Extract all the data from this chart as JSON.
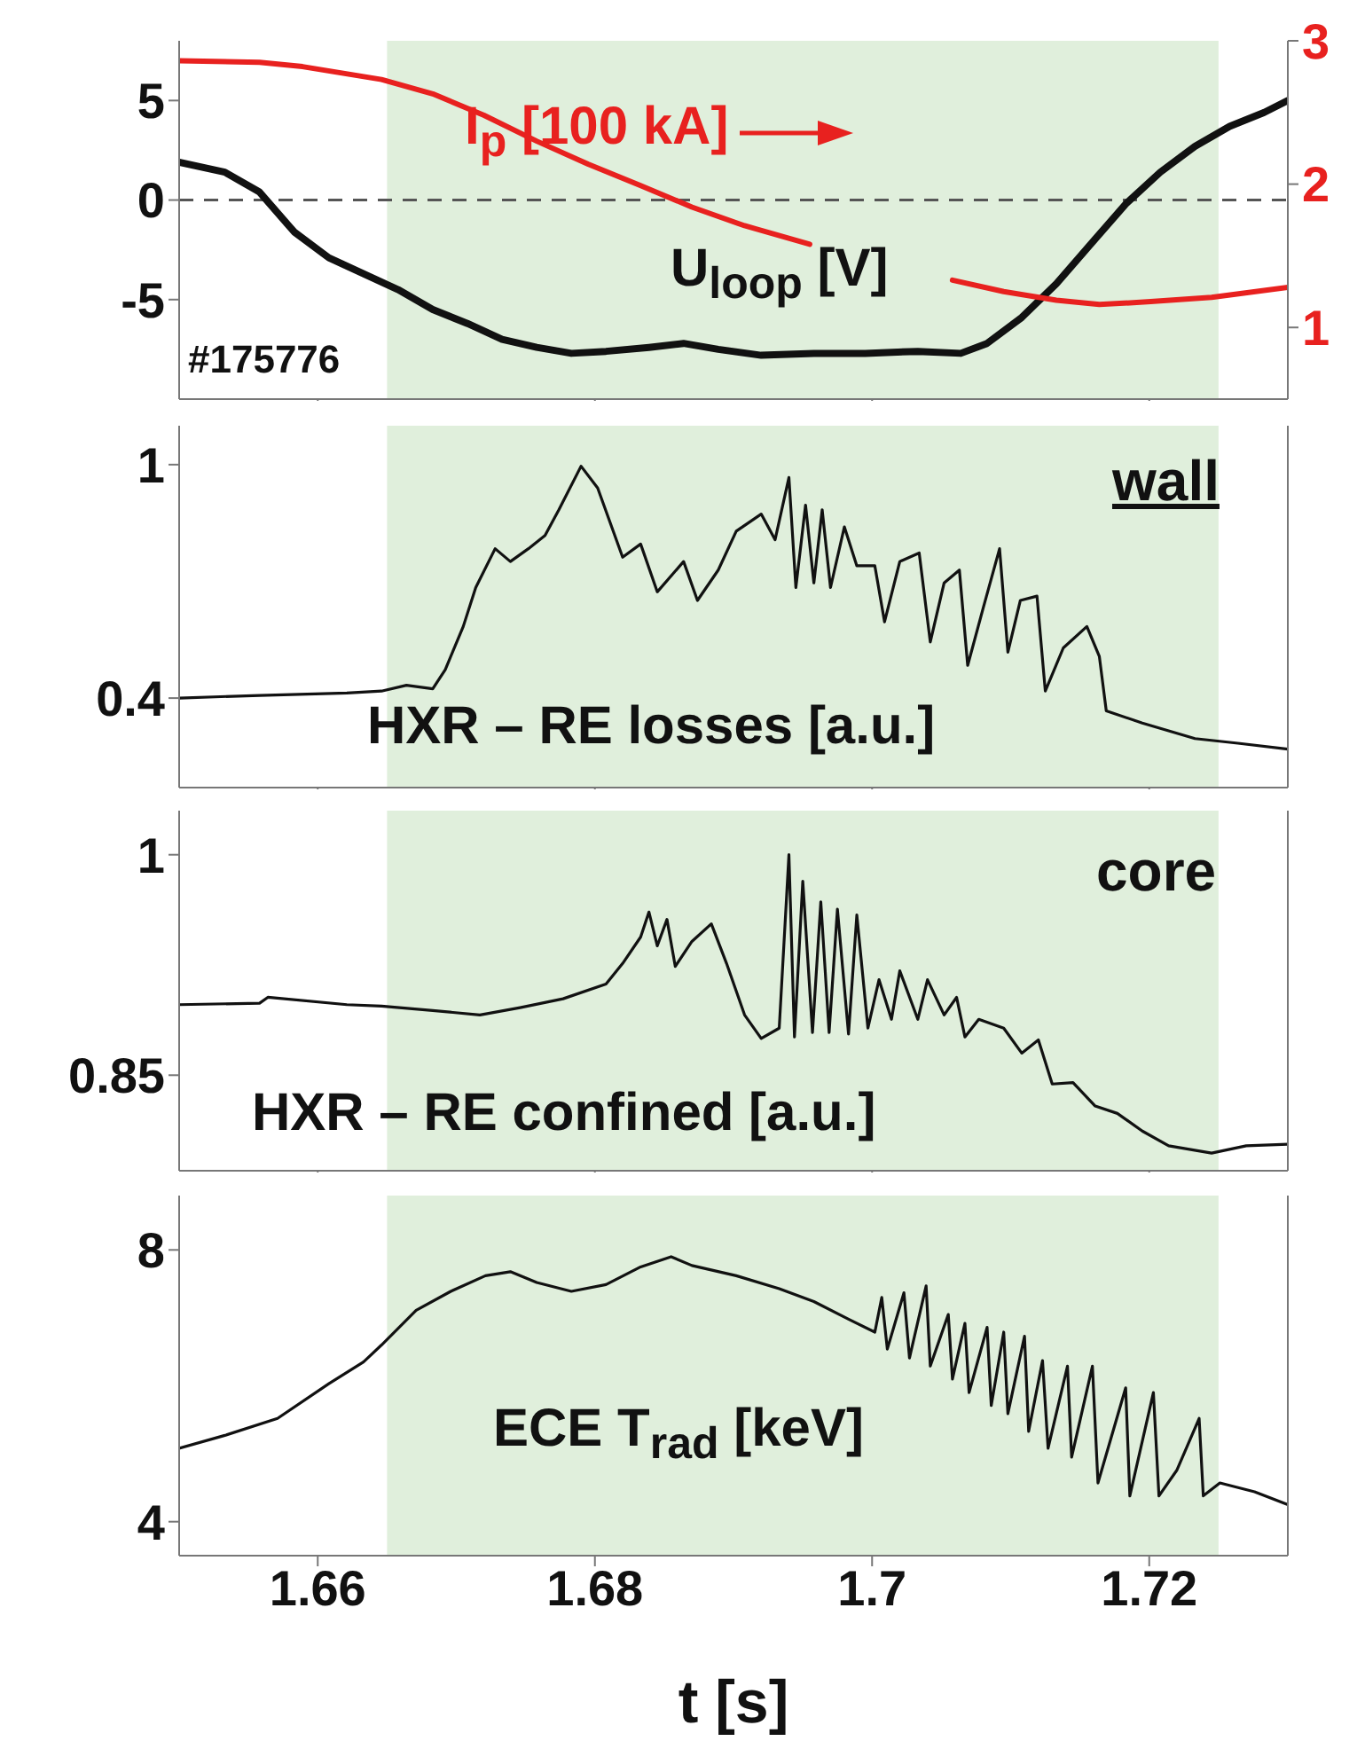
{
  "chart_data": [
    {
      "type": "line",
      "xlim": [
        1.65,
        1.73
      ],
      "xticks": [
        1.66,
        1.68,
        1.7,
        1.72
      ],
      "ylim": [
        -10,
        8
      ],
      "yticks": [
        -5,
        0,
        5
      ],
      "y2lim": [
        0.5,
        3
      ],
      "y2ticks": [
        1,
        2,
        3
      ],
      "tick_labels": "y",
      "annotations": [
        "#175776"
      ],
      "ref_lines": [
        {
          "axis": "y",
          "value": 0,
          "label": null,
          "color": "#555555",
          "line_style": "dashed"
        }
      ],
      "bands": [
        {
          "axis": "x",
          "from": 1.665,
          "to": 1.725,
          "label": null,
          "color": "#e0efdc"
        }
      ],
      "series": [
        {
          "name": "U$_{loop}$ [V]",
          "color": "#111111",
          "x": [
            1.65,
            1.6533,
            1.6558,
            1.6583,
            1.6608,
            1.6633,
            1.6658,
            1.6683,
            1.6708,
            1.6733,
            1.6758,
            1.6783,
            1.6808,
            1.6839,
            1.6864,
            1.6889,
            1.692,
            1.6958,
            1.6995,
            1.7033,
            1.7064,
            1.7083,
            1.7108,
            1.7133,
            1.7158,
            1.7183,
            1.7208,
            1.7233,
            1.7258,
            1.7283,
            1.73
          ],
          "values": [
            1.9,
            1.4,
            0.4,
            -1.6,
            -2.9,
            -3.7,
            -4.5,
            -5.5,
            -6.2,
            -7.0,
            -7.4,
            -7.7,
            -7.6,
            -7.4,
            -7.2,
            -7.5,
            -7.8,
            -7.7,
            -7.7,
            -7.6,
            -7.7,
            -7.2,
            -5.9,
            -4.2,
            -2.2,
            -0.2,
            1.4,
            2.7,
            3.7,
            4.4,
            5.0
          ]
        },
        {
          "name": "I$_{p}$ [100 kA]",
          "color": "#e8211f",
          "axis": "y2",
          "x": [
            1.65,
            1.6558,
            1.6589,
            1.6646,
            1.6683,
            1.672,
            1.6758,
            1.6795,
            1.6833,
            1.687,
            1.6908,
            1.6955,
            1.7005,
            1.7058,
            1.7095,
            1.7133,
            1.7164,
            1.7201,
            1.7245,
            1.73
          ],
          "values": [
            2.86,
            2.85,
            2.82,
            2.73,
            2.63,
            2.48,
            2.3,
            2.14,
            1.99,
            1.84,
            1.71,
            1.58,
            null,
            1.33,
            1.25,
            1.19,
            1.16,
            1.18,
            1.21,
            1.28
          ]
        }
      ]
    },
    {
      "type": "line",
      "xlim": [
        1.65,
        1.73
      ],
      "xticks": [
        1.66,
        1.68,
        1.7,
        1.72
      ],
      "ylim": [
        0.17,
        1.1
      ],
      "yticks": [
        0.4,
        1
      ],
      "tick_labels": "y",
      "annotations": [
        "wall"
      ],
      "bands": [
        {
          "axis": "x",
          "from": 1.665,
          "to": 1.725,
          "label": null,
          "color": "#e0efdc"
        }
      ],
      "series": [
        {
          "name": "HXR – RE losses [a.u.]",
          "color": "#111111",
          "x": [
            1.65,
            1.6558,
            1.6621,
            1.6646,
            1.6664,
            1.6683,
            1.6692,
            1.6705,
            1.6714,
            1.6728,
            1.6739,
            1.6752,
            1.6764,
            1.6774,
            1.679,
            1.6802,
            1.682,
            1.6833,
            1.6845,
            1.6864,
            1.6874,
            1.6889,
            1.6902,
            1.692,
            1.693,
            1.694,
            1.6945,
            1.6952,
            1.6958,
            1.6964,
            1.697,
            1.698,
            1.6989,
            1.7002,
            1.7009,
            1.702,
            1.7034,
            1.7042,
            1.7052,
            1.7063,
            1.7069,
            1.708,
            1.7092,
            1.7098,
            1.7107,
            1.7119,
            1.7125,
            1.7138,
            1.7155,
            1.7164,
            1.7169,
            1.7195,
            1.7233,
            1.7264,
            1.73
          ],
          "values": [
            0.4,
            0.407,
            0.413,
            0.418,
            0.433,
            0.424,
            0.473,
            0.584,
            0.684,
            0.784,
            0.751,
            0.784,
            0.818,
            0.884,
            0.996,
            0.94,
            0.762,
            0.796,
            0.673,
            0.751,
            0.651,
            0.729,
            0.829,
            0.873,
            0.807,
            0.967,
            0.684,
            0.896,
            0.696,
            0.884,
            0.684,
            0.84,
            0.74,
            0.74,
            0.596,
            0.751,
            0.773,
            0.544,
            0.696,
            0.729,
            0.484,
            0.629,
            0.784,
            0.518,
            0.651,
            0.662,
            0.418,
            0.529,
            0.584,
            0.507,
            0.367,
            0.336,
            0.296,
            0.284,
            0.269
          ]
        }
      ]
    },
    {
      "type": "line",
      "xlim": [
        1.65,
        1.73
      ],
      "xticks": [
        1.66,
        1.68,
        1.7,
        1.72
      ],
      "ylim": [
        0.785,
        1.03
      ],
      "yticks": [
        0.85,
        1
      ],
      "tick_labels": "y",
      "annotations": [
        "core"
      ],
      "bands": [
        {
          "axis": "x",
          "from": 1.665,
          "to": 1.725,
          "label": null,
          "color": "#e0efdc"
        }
      ],
      "series": [
        {
          "name": "HXR – RE confined [a.u.]",
          "color": "#111111",
          "x": [
            1.65,
            1.6558,
            1.6564,
            1.6621,
            1.6646,
            1.6683,
            1.6717,
            1.6746,
            1.6777,
            1.6808,
            1.682,
            1.6833,
            1.6839,
            1.6845,
            1.6852,
            1.6858,
            1.687,
            1.6884,
            1.6895,
            1.6908,
            1.692,
            1.6933,
            1.694,
            1.6944,
            1.695,
            1.6957,
            1.6963,
            1.6969,
            1.6975,
            1.6983,
            1.6989,
            1.6997,
            1.7005,
            1.7014,
            1.702,
            1.7033,
            1.704,
            1.7052,
            1.7061,
            1.7067,
            1.7077,
            1.7095,
            1.7108,
            1.712,
            1.713,
            1.7145,
            1.7161,
            1.7177,
            1.7195,
            1.7214,
            1.7245,
            1.727,
            1.73
          ],
          "values": [
            0.898,
            0.899,
            0.903,
            0.898,
            0.897,
            0.894,
            0.891,
            0.896,
            0.902,
            0.912,
            0.926,
            0.944,
            0.961,
            0.938,
            0.956,
            0.924,
            0.941,
            0.953,
            0.926,
            0.891,
            0.875,
            0.882,
            1.0,
            0.876,
            0.982,
            0.879,
            0.968,
            0.879,
            0.963,
            0.878,
            0.959,
            0.882,
            0.915,
            0.888,
            0.921,
            0.888,
            0.915,
            0.891,
            0.903,
            0.876,
            0.888,
            0.882,
            0.865,
            0.874,
            0.844,
            0.845,
            0.829,
            0.824,
            0.812,
            0.802,
            0.797,
            0.802,
            0.803
          ]
        }
      ]
    },
    {
      "type": "line",
      "xlim": [
        1.65,
        1.73
      ],
      "xticks": [
        1.66,
        1.68,
        1.7,
        1.72
      ],
      "ylim": [
        3.5,
        8.8
      ],
      "yticks": [
        4,
        8
      ],
      "xlabel": "t [s]",
      "bands": [
        {
          "axis": "x",
          "from": 1.665,
          "to": 1.725,
          "label": null,
          "color": "#e0efdc"
        }
      ],
      "series": [
        {
          "name": "ECE T$_{rad}$ [keV]",
          "color": "#111111",
          "x": [
            1.65,
            1.6533,
            1.6571,
            1.6608,
            1.6633,
            1.6646,
            1.6671,
            1.6696,
            1.6721,
            1.6739,
            1.6758,
            1.6783,
            1.6808,
            1.6833,
            1.6855,
            1.687,
            1.6902,
            1.6933,
            1.6958,
            1.6983,
            1.7002,
            1.7007,
            1.7011,
            1.7023,
            1.7027,
            1.7039,
            1.7042,
            1.7055,
            1.7058,
            1.7067,
            1.707,
            1.7083,
            1.7086,
            1.7095,
            1.7098,
            1.711,
            1.7113,
            1.7123,
            1.7127,
            1.7141,
            1.7144,
            1.7159,
            1.7163,
            1.7183,
            1.7186,
            1.7203,
            1.7207,
            1.722,
            1.7236,
            1.7239,
            1.7251,
            1.7276,
            1.73
          ],
          "values": [
            5.08,
            5.27,
            5.52,
            6.03,
            6.35,
            6.6,
            7.11,
            7.39,
            7.62,
            7.68,
            7.52,
            7.39,
            7.49,
            7.75,
            7.9,
            7.77,
            7.62,
            7.43,
            7.24,
            6.98,
            6.79,
            7.3,
            6.54,
            7.37,
            6.41,
            7.47,
            6.29,
            7.05,
            6.1,
            6.92,
            5.9,
            6.86,
            5.71,
            6.79,
            5.59,
            6.73,
            5.33,
            6.37,
            5.08,
            6.29,
            4.95,
            6.29,
            4.57,
            5.97,
            4.38,
            5.9,
            4.38,
            4.76,
            5.52,
            4.38,
            4.57,
            4.44,
            4.25
          ]
        }
      ]
    }
  ]
}
